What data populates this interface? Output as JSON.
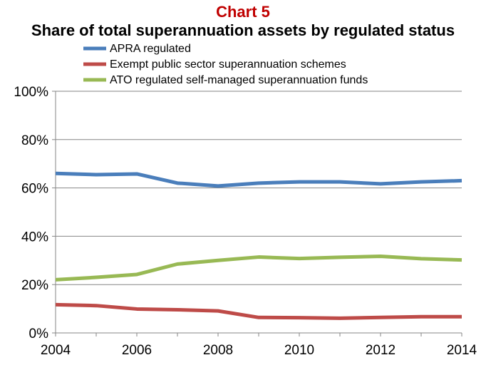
{
  "chart_data": {
    "type": "line",
    "title": "Chart 5",
    "subtitle": "Share of total superannuation assets by regulated status",
    "x": [
      2004,
      2005,
      2006,
      2007,
      2008,
      2009,
      2010,
      2011,
      2012,
      2013,
      2014
    ],
    "x_ticks": [
      "2004",
      "2006",
      "2008",
      "2010",
      "2012",
      "2014"
    ],
    "y_ticks": [
      "0%",
      "20%",
      "40%",
      "60%",
      "80%",
      "100%"
    ],
    "ylim": [
      0,
      100
    ],
    "grid": true,
    "legend_position": "top",
    "series": [
      {
        "name": "APRA regulated",
        "color": "#4a7ebb",
        "values": [
          66,
          65.5,
          65.8,
          62,
          60.8,
          62,
          62.5,
          62.5,
          61.7,
          62.5,
          63
        ]
      },
      {
        "name": "Exempt public sector superannuation schemes",
        "color": "#be4b48",
        "values": [
          11.7,
          11.3,
          9.9,
          9.6,
          9.1,
          6.4,
          6.3,
          6.1,
          6.4,
          6.7,
          6.7
        ]
      },
      {
        "name": "ATO regulated self-managed superannuation funds",
        "color": "#98b954",
        "values": [
          22,
          23,
          24.2,
          28.5,
          30,
          31.4,
          30.8,
          31.3,
          31.7,
          30.7,
          30.2
        ]
      }
    ]
  }
}
